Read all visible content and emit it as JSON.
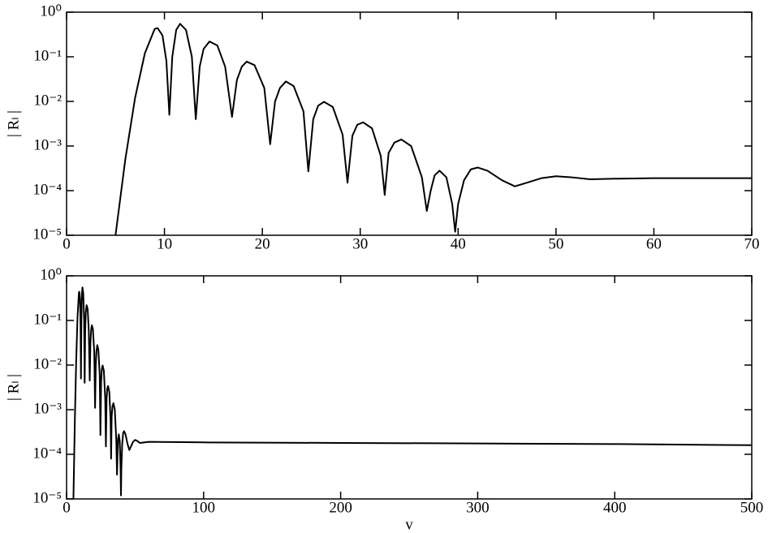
{
  "chart_data": [
    {
      "type": "line",
      "ylabel": "| Rₗ |",
      "log_y": true,
      "xlim": [
        0,
        70
      ],
      "xticks": [
        0,
        10,
        20,
        30,
        40,
        50,
        60,
        70
      ],
      "ylim": [
        1e-05,
        1
      ],
      "yticks": [
        {
          "value": 1e-05,
          "label": "10⁻⁵"
        },
        {
          "value": 0.0001,
          "label": "10⁻⁴"
        },
        {
          "value": 0.001,
          "label": "10⁻³"
        },
        {
          "value": 0.01,
          "label": "10⁻²"
        },
        {
          "value": 0.1,
          "label": "10⁻¹"
        },
        {
          "value": 1,
          "label": "10⁰"
        }
      ],
      "color": "#000000",
      "x": [
        5,
        6,
        7,
        8,
        9,
        9.3,
        9.8,
        10.2,
        10.5,
        10.8,
        11.2,
        11.6,
        12.2,
        12.8,
        13.2,
        13.6,
        14.0,
        14.6,
        15.4,
        16.2,
        16.9,
        17.4,
        17.9,
        18.4,
        19.2,
        20.2,
        20.8,
        21.3,
        21.8,
        22.4,
        23.2,
        24.2,
        24.7,
        25.2,
        25.7,
        26.3,
        27.2,
        28.2,
        28.7,
        29.2,
        29.7,
        30.3,
        31.2,
        32.1,
        32.5,
        32.9,
        33.5,
        34.2,
        35.2,
        36.3,
        36.8,
        37.2,
        37.6,
        38.1,
        38.8,
        39.4,
        39.7,
        40.0,
        40.6,
        41.3,
        42.0,
        43.0,
        44.5,
        45.8,
        47.0,
        48.5,
        50.0,
        51.5,
        53.5,
        56,
        60,
        65,
        70
      ],
      "values": [
        1e-05,
        0.0005,
        0.012,
        0.12,
        0.42,
        0.44,
        0.3,
        0.08,
        0.005,
        0.1,
        0.4,
        0.55,
        0.4,
        0.1,
        0.004,
        0.06,
        0.15,
        0.22,
        0.18,
        0.06,
        0.0045,
        0.03,
        0.06,
        0.078,
        0.065,
        0.02,
        0.0011,
        0.01,
        0.02,
        0.028,
        0.022,
        0.006,
        0.00027,
        0.004,
        0.008,
        0.0098,
        0.0075,
        0.0018,
        0.00015,
        0.0017,
        0.003,
        0.0034,
        0.0025,
        0.0006,
        8e-05,
        0.0007,
        0.0012,
        0.0014,
        0.001,
        0.0002,
        3.5e-05,
        0.0001,
        0.00022,
        0.00028,
        0.0002,
        5e-05,
        1.2e-05,
        5e-05,
        0.00017,
        0.0003,
        0.00033,
        0.00028,
        0.00017,
        0.000125,
        0.00015,
        0.00019,
        0.00021,
        0.0002,
        0.00018,
        0.000185,
        0.00019,
        0.00019,
        0.00019
      ]
    },
    {
      "type": "line",
      "ylabel": "| Rₗ |",
      "xlabel": "v",
      "log_y": true,
      "xlim": [
        0,
        500
      ],
      "xticks": [
        0,
        100,
        200,
        300,
        400,
        500
      ],
      "ylim": [
        1e-05,
        1
      ],
      "yticks": [
        {
          "value": 1e-05,
          "label": "10⁻⁵"
        },
        {
          "value": 0.0001,
          "label": "10⁻⁴"
        },
        {
          "value": 0.001,
          "label": "10⁻³"
        },
        {
          "value": 0.01,
          "label": "10⁻²"
        },
        {
          "value": 0.1,
          "label": "10⁻¹"
        },
        {
          "value": 1,
          "label": "10⁰"
        }
      ],
      "color": "#000000",
      "x": [
        5,
        6,
        7,
        8,
        9,
        9.3,
        9.8,
        10.2,
        10.5,
        10.8,
        11.2,
        11.6,
        12.2,
        12.8,
        13.2,
        13.6,
        14.0,
        14.6,
        15.4,
        16.2,
        16.9,
        17.4,
        17.9,
        18.4,
        19.2,
        20.2,
        20.8,
        21.3,
        21.8,
        22.4,
        23.2,
        24.2,
        24.7,
        25.2,
        25.7,
        26.3,
        27.2,
        28.2,
        28.7,
        29.2,
        29.7,
        30.3,
        31.2,
        32.1,
        32.5,
        32.9,
        33.5,
        34.2,
        35.2,
        36.3,
        36.8,
        37.2,
        37.6,
        38.1,
        38.8,
        39.4,
        39.7,
        40.0,
        40.6,
        41.3,
        42.0,
        43.0,
        44.5,
        45.8,
        47.0,
        48.5,
        50.0,
        51.5,
        53.5,
        60,
        100,
        200,
        300,
        400,
        500
      ],
      "values": [
        1e-05,
        0.0005,
        0.012,
        0.12,
        0.42,
        0.44,
        0.3,
        0.08,
        0.005,
        0.1,
        0.4,
        0.55,
        0.4,
        0.1,
        0.004,
        0.06,
        0.15,
        0.22,
        0.18,
        0.06,
        0.0045,
        0.03,
        0.06,
        0.078,
        0.065,
        0.02,
        0.0011,
        0.01,
        0.02,
        0.028,
        0.022,
        0.006,
        0.00027,
        0.004,
        0.008,
        0.0098,
        0.0075,
        0.0018,
        0.00015,
        0.0017,
        0.003,
        0.0034,
        0.0025,
        0.0006,
        8e-05,
        0.0007,
        0.0012,
        0.0014,
        0.001,
        0.0002,
        3.5e-05,
        0.0001,
        0.00022,
        0.00028,
        0.0002,
        5e-05,
        1.2e-05,
        5e-05,
        0.00017,
        0.0003,
        0.00033,
        0.00028,
        0.00017,
        0.000125,
        0.00015,
        0.00019,
        0.00021,
        0.0002,
        0.00018,
        0.00019,
        0.000185,
        0.00018,
        0.000175,
        0.00017,
        0.00016
      ]
    }
  ]
}
